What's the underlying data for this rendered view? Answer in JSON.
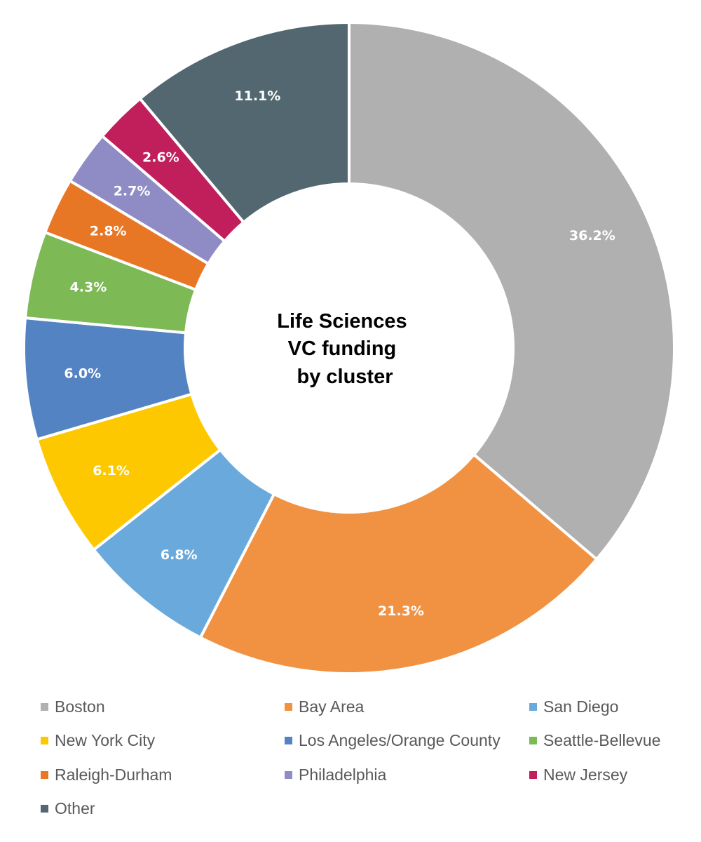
{
  "chart_data": {
    "type": "pie",
    "donut": true,
    "center_title": [
      "Life Sciences",
      "VC funding",
      "by cluster"
    ],
    "legend_placement": "bottom",
    "slices": [
      {
        "name": "Boston",
        "value": 36.2,
        "label": "36.2%",
        "color": "#b0b0b0"
      },
      {
        "name": "Bay Area",
        "value": 21.3,
        "label": "21.3%",
        "color": "#f09242"
      },
      {
        "name": "San Diego",
        "value": 6.8,
        "label": "6.8%",
        "color": "#6aa9db"
      },
      {
        "name": "New York City",
        "value": 6.1,
        "label": "6.1%",
        "color": "#fdc800"
      },
      {
        "name": "Los Angeles/Orange County",
        "value": 6.0,
        "label": "6.0%",
        "color": "#5483c3"
      },
      {
        "name": "Seattle-Bellevue",
        "value": 4.3,
        "label": "4.3%",
        "color": "#7dba55"
      },
      {
        "name": "Raleigh-Durham",
        "value": 2.8,
        "label": "2.8%",
        "color": "#e87725"
      },
      {
        "name": "Philadelphia",
        "value": 2.7,
        "label": "2.7%",
        "color": "#8f8cc5"
      },
      {
        "name": "New Jersey",
        "value": 2.6,
        "label": "2.6%",
        "color": "#c01f5c"
      },
      {
        "name": "Other",
        "value": 11.1,
        "label": "11.1%",
        "color": "#526770"
      }
    ]
  }
}
